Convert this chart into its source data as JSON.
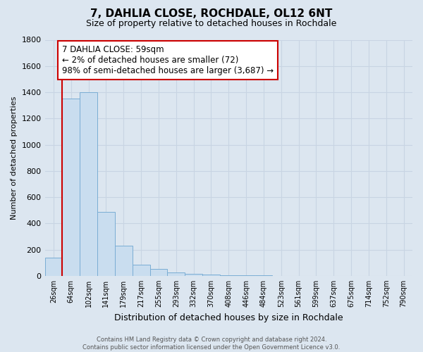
{
  "title": "7, DAHLIA CLOSE, ROCHDALE, OL12 6NT",
  "subtitle": "Size of property relative to detached houses in Rochdale",
  "xlabel": "Distribution of detached houses by size in Rochdale",
  "ylabel": "Number of detached properties",
  "bar_labels": [
    "26sqm",
    "64sqm",
    "102sqm",
    "141sqm",
    "179sqm",
    "217sqm",
    "255sqm",
    "293sqm",
    "332sqm",
    "370sqm",
    "408sqm",
    "446sqm",
    "484sqm",
    "523sqm",
    "561sqm",
    "599sqm",
    "637sqm",
    "675sqm",
    "714sqm",
    "752sqm",
    "790sqm"
  ],
  "bar_values": [
    140,
    1350,
    1400,
    490,
    230,
    85,
    50,
    25,
    15,
    10,
    5,
    2,
    2,
    0,
    0,
    0,
    0,
    0,
    0,
    0,
    0
  ],
  "bar_color": "#c9ddef",
  "bar_edge_color": "#7aadd4",
  "highlight_line_color": "#cc0000",
  "annotation_text_line1": "7 DAHLIA CLOSE: 59sqm",
  "annotation_text_line2": "← 2% of detached houses are smaller (72)",
  "annotation_text_line3": "98% of semi-detached houses are larger (3,687) →",
  "annotation_box_color": "#ffffff",
  "annotation_box_edge": "#cc0000",
  "ylim": [
    0,
    1800
  ],
  "yticks": [
    0,
    200,
    400,
    600,
    800,
    1000,
    1200,
    1400,
    1600,
    1800
  ],
  "grid_color": "#c8d4e3",
  "background_color": "#dce6f0",
  "footer_line1": "Contains HM Land Registry data © Crown copyright and database right 2024.",
  "footer_line2": "Contains public sector information licensed under the Open Government Licence v3.0."
}
